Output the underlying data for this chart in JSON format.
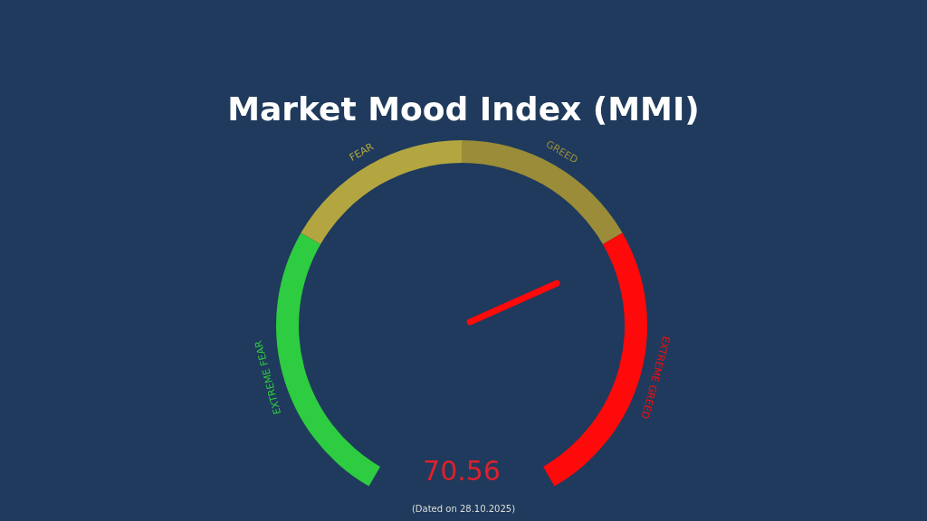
{
  "chart_data": {
    "type": "donut",
    "title": "Market Mood Index (MMI)",
    "categories": [
      "EXTREME FEAR",
      "FEAR",
      "GREED",
      "EXTREME GREED"
    ],
    "values": [
      30,
      20,
      20,
      30
    ],
    "colors": [
      "#2ecc40",
      "#b3a640",
      "#9a8c38",
      "#ff0a0a"
    ],
    "needle": "EXTREME GREED",
    "annotations": [
      "70.56",
      "(Dated on 28.10.2025)"
    ]
  }
}
